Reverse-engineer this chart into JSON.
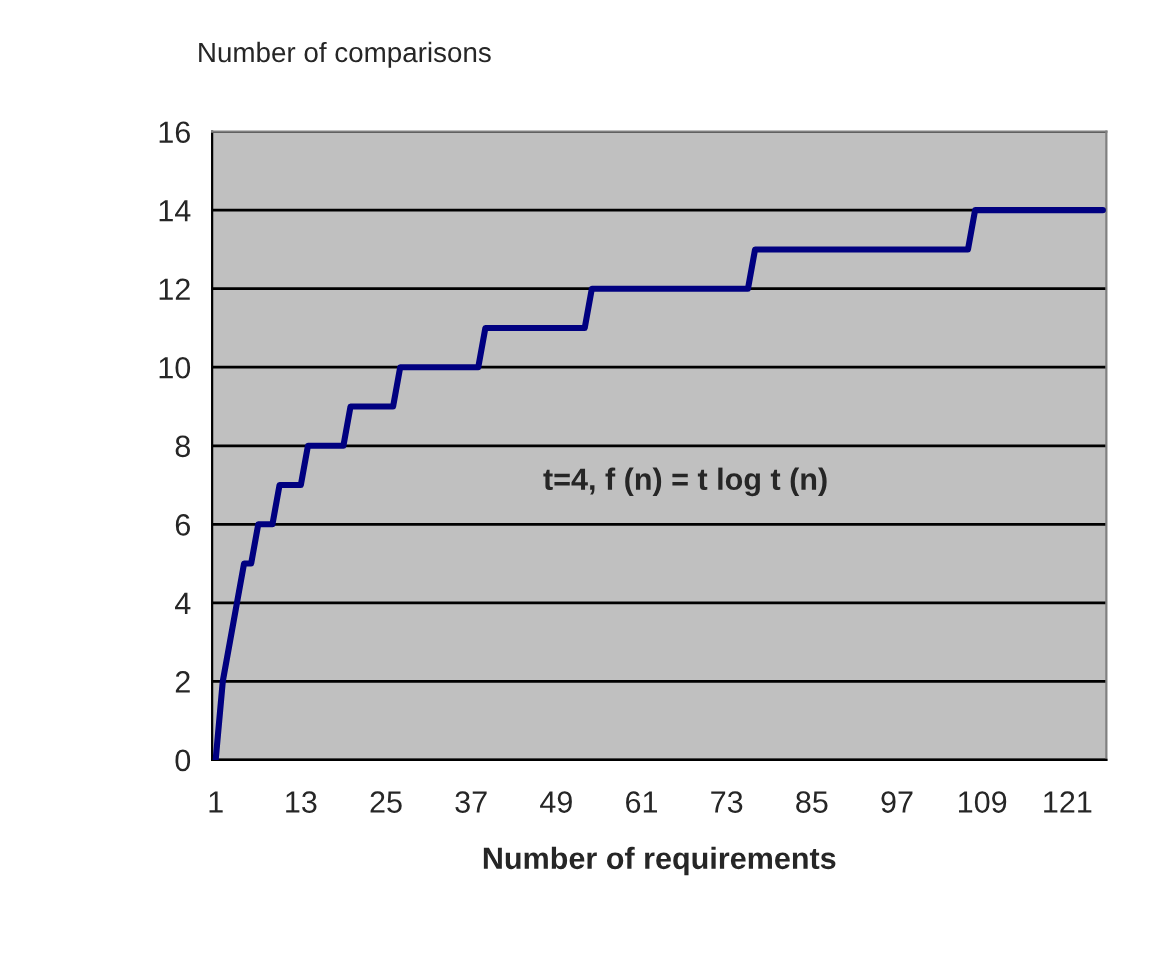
{
  "chart_data": {
    "type": "line",
    "ylabel": "Number of comparisons",
    "xlabel": "Number of requirements",
    "annotations": [
      "t=4, f (n) = t log t (n)"
    ],
    "categories": [
      "1",
      null,
      null,
      null,
      null,
      null,
      null,
      null,
      null,
      null,
      null,
      null,
      "13",
      null,
      null,
      null,
      null,
      null,
      null,
      null,
      null,
      null,
      null,
      null,
      "25",
      null,
      null,
      null,
      null,
      null,
      null,
      null,
      null,
      null,
      null,
      null,
      "37",
      null,
      null,
      null,
      null,
      null,
      null,
      null,
      null,
      null,
      null,
      null,
      "49",
      null,
      null,
      null,
      null,
      null,
      null,
      null,
      null,
      null,
      null,
      null,
      "61",
      null,
      null,
      null,
      null,
      null,
      null,
      null,
      null,
      null,
      null,
      null,
      "73",
      null,
      null,
      null,
      null,
      null,
      null,
      null,
      null,
      null,
      null,
      null,
      "85",
      null,
      null,
      null,
      null,
      null,
      null,
      null,
      null,
      null,
      null,
      null,
      "97",
      null,
      null,
      null,
      null,
      null,
      null,
      null,
      null,
      null,
      null,
      null,
      "109",
      null,
      null,
      null,
      null,
      null,
      null,
      null,
      null,
      null,
      null,
      null,
      "121",
      null,
      null,
      null,
      null,
      null
    ],
    "series": [
      {
        "color": "#000080",
        "values": [
          0,
          2,
          3,
          4,
          5,
          5,
          6,
          6,
          6,
          7,
          7,
          7,
          7,
          8,
          8,
          8,
          8,
          8,
          8,
          9,
          9,
          9,
          9,
          9,
          9,
          9,
          10,
          10,
          10,
          10,
          10,
          10,
          10,
          10,
          10,
          10,
          10,
          10,
          11,
          11,
          11,
          11,
          11,
          11,
          11,
          11,
          11,
          11,
          11,
          11,
          11,
          11,
          11,
          12,
          12,
          12,
          12,
          12,
          12,
          12,
          12,
          12,
          12,
          12,
          12,
          12,
          12,
          12,
          12,
          12,
          12,
          12,
          12,
          12,
          12,
          12,
          13,
          13,
          13,
          13,
          13,
          13,
          13,
          13,
          13,
          13,
          13,
          13,
          13,
          13,
          13,
          13,
          13,
          13,
          13,
          13,
          13,
          13,
          13,
          13,
          13,
          13,
          13,
          13,
          13,
          13,
          13,
          14,
          14,
          14,
          14,
          14,
          14,
          14,
          14,
          14,
          14,
          14,
          14,
          14,
          14,
          14,
          14,
          14,
          14,
          14
        ]
      }
    ],
    "ylim": [
      0,
      16
    ],
    "yticks": [
      0,
      2,
      4,
      6,
      8,
      10,
      12,
      14,
      16
    ],
    "grid": "y",
    "legend": false,
    "marker": "none",
    "line_style": "solid"
  }
}
